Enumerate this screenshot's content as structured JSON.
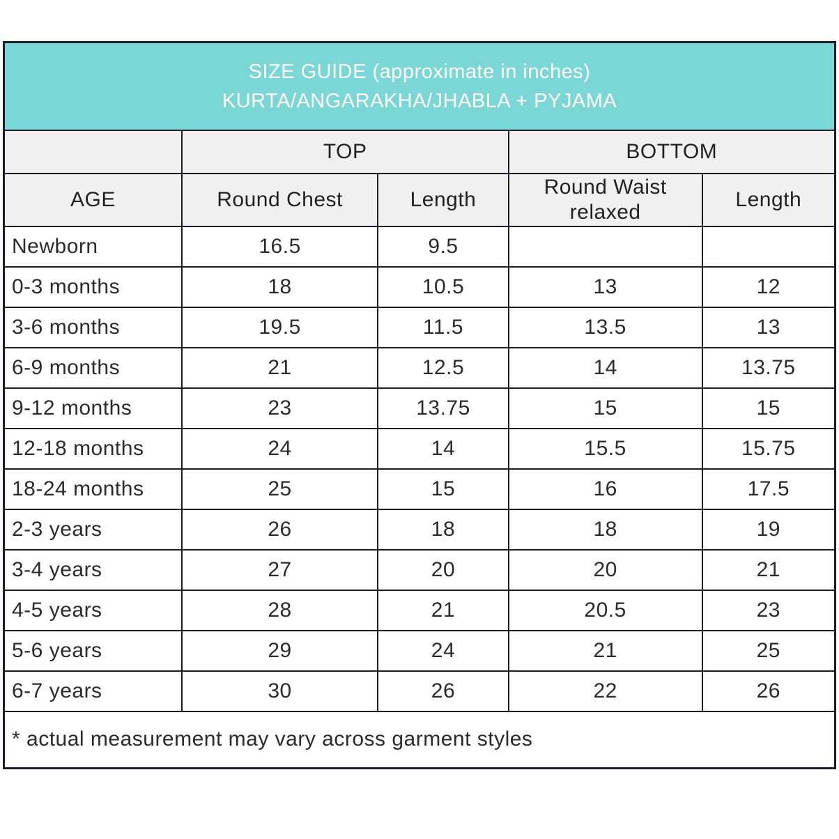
{
  "header": {
    "title_line1": "SIZE GUIDE (approximate in inches)",
    "title_line2": "KURTA/ANGARAKHA/JHABLA + PYJAMA"
  },
  "table": {
    "group_headers": {
      "top": "TOP",
      "bottom": "BOTTOM"
    },
    "column_headers": [
      "AGE",
      "Round Chest",
      "Length",
      "Round Waist relaxed",
      "Length"
    ],
    "rows": [
      [
        "Newborn",
        "16.5",
        "9.5",
        "",
        ""
      ],
      [
        "0-3 months",
        "18",
        "10.5",
        "13",
        "12"
      ],
      [
        "3-6 months",
        "19.5",
        "11.5",
        "13.5",
        "13"
      ],
      [
        "6-9 months",
        "21",
        "12.5",
        "14",
        "13.75"
      ],
      [
        "9-12 months",
        "23",
        "13.75",
        "15",
        "15"
      ],
      [
        "12-18 months",
        "24",
        "14",
        "15.5",
        "15.75"
      ],
      [
        "18-24 months",
        "25",
        "15",
        "16",
        "17.5"
      ],
      [
        "2-3 years",
        "26",
        "18",
        "18",
        "19"
      ],
      [
        "3-4 years",
        "27",
        "20",
        "20",
        "21"
      ],
      [
        "4-5 years",
        "28",
        "21",
        "20.5",
        "23"
      ],
      [
        "5-6 years",
        "29",
        "24",
        "21",
        "25"
      ],
      [
        "6-7 years",
        "30",
        "26",
        "22",
        "26"
      ]
    ],
    "footnote": "* actual measurement may vary across garment styles"
  },
  "colors": {
    "accent_teal": "#7bd7d6",
    "header_gray": "#f0f0f0",
    "border": "#1c1c28",
    "banner_text": "#ffffff",
    "body_text": "#2b2b2b"
  }
}
